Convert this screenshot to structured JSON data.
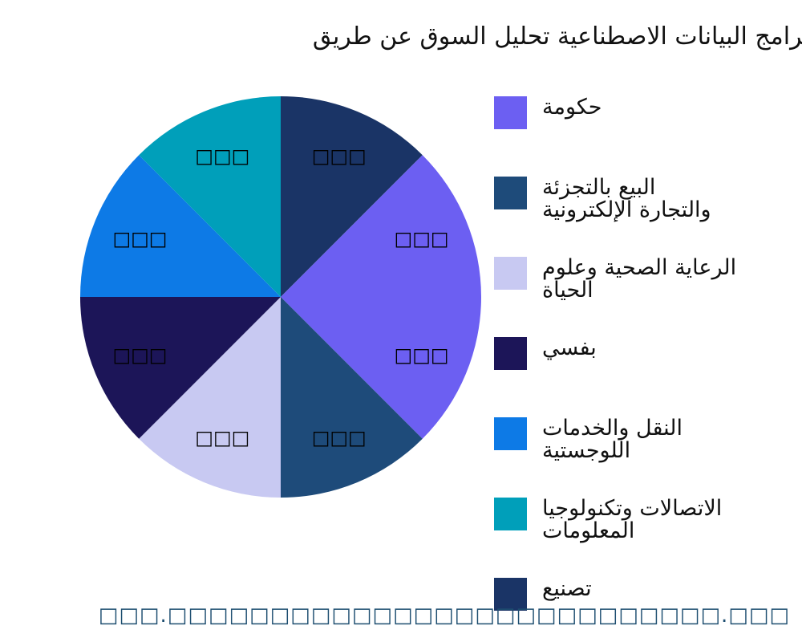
{
  "chart_data": {
    "type": "pie",
    "title": "برامج البيانات الاصطناعية تحليل السوق عن طريق",
    "direction": "clockwise",
    "start": "top",
    "slices": [
      {
        "name": "تصنيع",
        "value": 12.5,
        "color": "#1a3466",
        "label": "□□□"
      },
      {
        "name": "",
        "value": 12.5,
        "color": "#6c5ff2",
        "label": "□□□"
      },
      {
        "name": "حكومة",
        "value": 12.5,
        "color": "#6c5ff2",
        "label": "□□□"
      },
      {
        "name": "البيع بالتجزئة والتجارة الإلكترونية",
        "value": 12.5,
        "color": "#1e4b7a",
        "label": "□□□"
      },
      {
        "name": "الرعاية الصحية وعلوم الحياة",
        "value": 12.5,
        "color": "#c8c9f2",
        "label": "□□□"
      },
      {
        "name": "بفسي",
        "value": 12.5,
        "color": "#1c1558",
        "label": "□□□"
      },
      {
        "name": "النقل والخدمات اللوجستية",
        "value": 12.5,
        "color": "#0d7ae6",
        "label": "□□□"
      },
      {
        "name": "الاتصالات وتكنولوجيا المعلومات",
        "value": 12.5,
        "color": "#009fba",
        "label": "□□□"
      }
    ],
    "legend": {
      "placement": "right",
      "items": [
        {
          "label": "حكومة",
          "color": "#6c5ff2"
        },
        {
          "label": "البيع بالتجزئة\nوالتجارة الإلكترونية",
          "color": "#1e4b7a"
        },
        {
          "label": "الرعاية الصحية وعلوم\nالحياة",
          "color": "#c8c9f2"
        },
        {
          "label": "بفسي",
          "color": "#1c1558"
        },
        {
          "label": "النقل والخدمات\nاللوجستية",
          "color": "#0d7ae6"
        },
        {
          "label": "الاتصالات وتكنولوجيا\nالمعلومات",
          "color": "#009fba"
        },
        {
          "label": "تصنيع",
          "color": "#1a3466"
        }
      ]
    }
  },
  "watermark": "□□□.□□□□□□□□□□□□□□□□□□□□□□□□□□□.□□□"
}
